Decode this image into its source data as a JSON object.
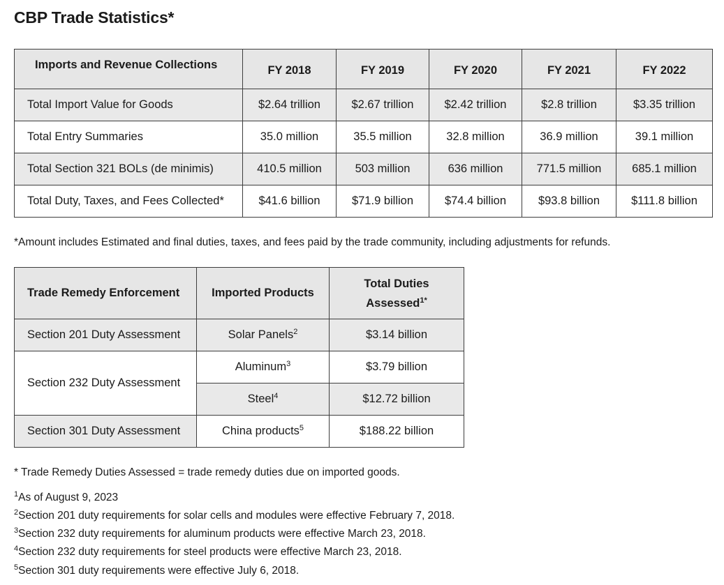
{
  "title": "CBP Trade Statistics*",
  "table1": {
    "header": [
      "Imports and Revenue Collections",
      "FY 2018",
      "FY 2019",
      "FY 2020",
      "FY 2021",
      "FY 2022"
    ],
    "rows": [
      [
        "Total Import Value for Goods",
        "$2.64 trillion",
        "$2.67 trillion",
        "$2.42 trillion",
        "$2.8 trillion",
        "$3.35 trillion"
      ],
      [
        "Total Entry Summaries",
        "35.0 million",
        "35.5 million",
        "32.8 million",
        "36.9 million",
        "39.1 million"
      ],
      [
        "Total Section 321 BOLs (de minimis)",
        "410.5 million",
        "503 million",
        "636 million",
        "771.5 million",
        "685.1 million"
      ],
      [
        "Total Duty, Taxes, and Fees Collected*",
        "$41.6 billion",
        "$71.9 billion",
        "$74.4 billion",
        "$93.8 billion",
        "$111.8 billion"
      ]
    ]
  },
  "note1": "*Amount includes Estimated and final duties, taxes, and fees paid by the trade community, including adjustments for refunds.",
  "table2": {
    "header": {
      "c1": "Trade Remedy Enforcement",
      "c2": "Imported Products",
      "c3_line1": "Total Duties",
      "c3_line2": "Assessed",
      "c3_sup": "1*"
    },
    "rows": [
      {
        "label": "Section 201 Duty Assessment",
        "product": "Solar Panels",
        "sup": "2",
        "value": "$3.14 billion"
      },
      {
        "label": "Section 232 Duty Assessment",
        "product": "Aluminum",
        "sup": "3",
        "value": "$3.79 billion"
      },
      {
        "label": "",
        "product": "Steel",
        "sup": "4",
        "value": "$12.72 billion"
      },
      {
        "label": "Section 301 Duty Assessment",
        "product": "China products",
        "sup": "5",
        "value": "$188.22 billion"
      }
    ]
  },
  "note2": "* Trade Remedy Duties Assessed = trade remedy duties due on imported goods.",
  "footnotes": [
    {
      "num": "1",
      "text": "As of August 9, 2023"
    },
    {
      "num": "2",
      "text": "Section 201 duty requirements for solar cells and modules were effective February 7, 2018."
    },
    {
      "num": "3",
      "text": "Section 232 duty requirements for aluminum products were effective March 23, 2018."
    },
    {
      "num": "4",
      "text": "Section 232 duty requirements for steel products were effective March 23, 2018."
    },
    {
      "num": "5",
      "text": "Section 301 duty requirements were effective July 6, 2018."
    }
  ]
}
